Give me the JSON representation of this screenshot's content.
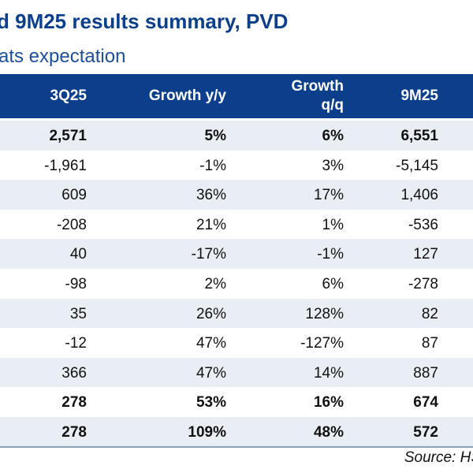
{
  "title": "d 9M25 results summary, PVD",
  "subtitle": "ats expectation",
  "columns": [
    "3Q25",
    "Growth y/y",
    "Growth q/q",
    "9M25"
  ],
  "rows": [
    {
      "bold": true,
      "cells": [
        "2,571",
        "5%",
        "6%",
        "6,551"
      ]
    },
    {
      "bold": false,
      "cells": [
        "-1,961",
        "-1%",
        "3%",
        "-5,145"
      ]
    },
    {
      "bold": false,
      "cells": [
        "609",
        "36%",
        "17%",
        "1,406"
      ]
    },
    {
      "bold": false,
      "cells": [
        "-208",
        "21%",
        "1%",
        "-536"
      ]
    },
    {
      "bold": false,
      "cells": [
        "40",
        "-17%",
        "-1%",
        "127"
      ]
    },
    {
      "bold": false,
      "cells": [
        "-98",
        "2%",
        "6%",
        "-278"
      ]
    },
    {
      "bold": false,
      "cells": [
        "35",
        "26%",
        "128%",
        "82"
      ]
    },
    {
      "bold": false,
      "cells": [
        "-12",
        "47%",
        "-127%",
        "87"
      ]
    },
    {
      "bold": false,
      "cells": [
        "366",
        "47%",
        "14%",
        "887"
      ]
    },
    {
      "bold": true,
      "cells": [
        "278",
        "53%",
        "16%",
        "674"
      ]
    },
    {
      "bold": true,
      "cells": [
        "278",
        "109%",
        "48%",
        "572"
      ]
    }
  ],
  "source": "Source: HS",
  "colors": {
    "header_bg": "#0b3f8c",
    "row_shade": "#e9edf4",
    "title": "#0b3f8c"
  }
}
